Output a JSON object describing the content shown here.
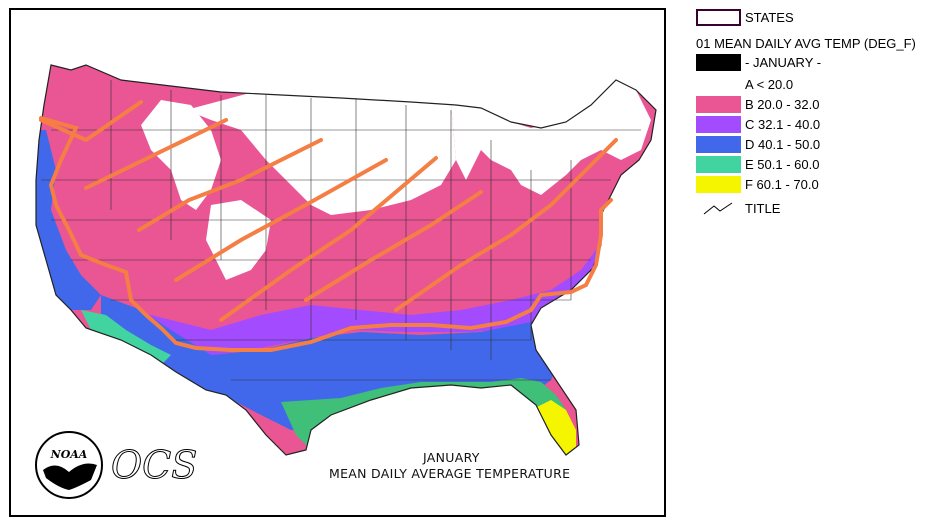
{
  "legend": {
    "states_label": "STATES",
    "title": "01 MEAN DAILY AVG TEMP (DEG_F)",
    "month": "- JANUARY -",
    "classes": [
      {
        "label": "A < 20.0",
        "color": "#ffffff"
      },
      {
        "label": "B 20.0 - 32.0",
        "color": "#ea5593"
      },
      {
        "label": "C 32.1 - 40.0",
        "color": "#a24bff"
      },
      {
        "label": "D 40.1 - 50.0",
        "color": "#4168ea"
      },
      {
        "label": "E 50.1 - 60.0",
        "color": "#42d4a0"
      },
      {
        "label": "F 60.1 - 70.0",
        "color": "#f5f500"
      }
    ],
    "title_line_label": "TITLE"
  },
  "map": {
    "title_line1": "JANUARY",
    "title_line2": "MEAN DAILY AVERAGE TEMPERATURE",
    "ocs_text": "OCS",
    "noaa_text": "NOAA",
    "colors": {
      "frame": "#000000",
      "states_border": "#3a0030",
      "annotation": "#f47e44",
      "gulf_green": "#3fbf78"
    }
  }
}
